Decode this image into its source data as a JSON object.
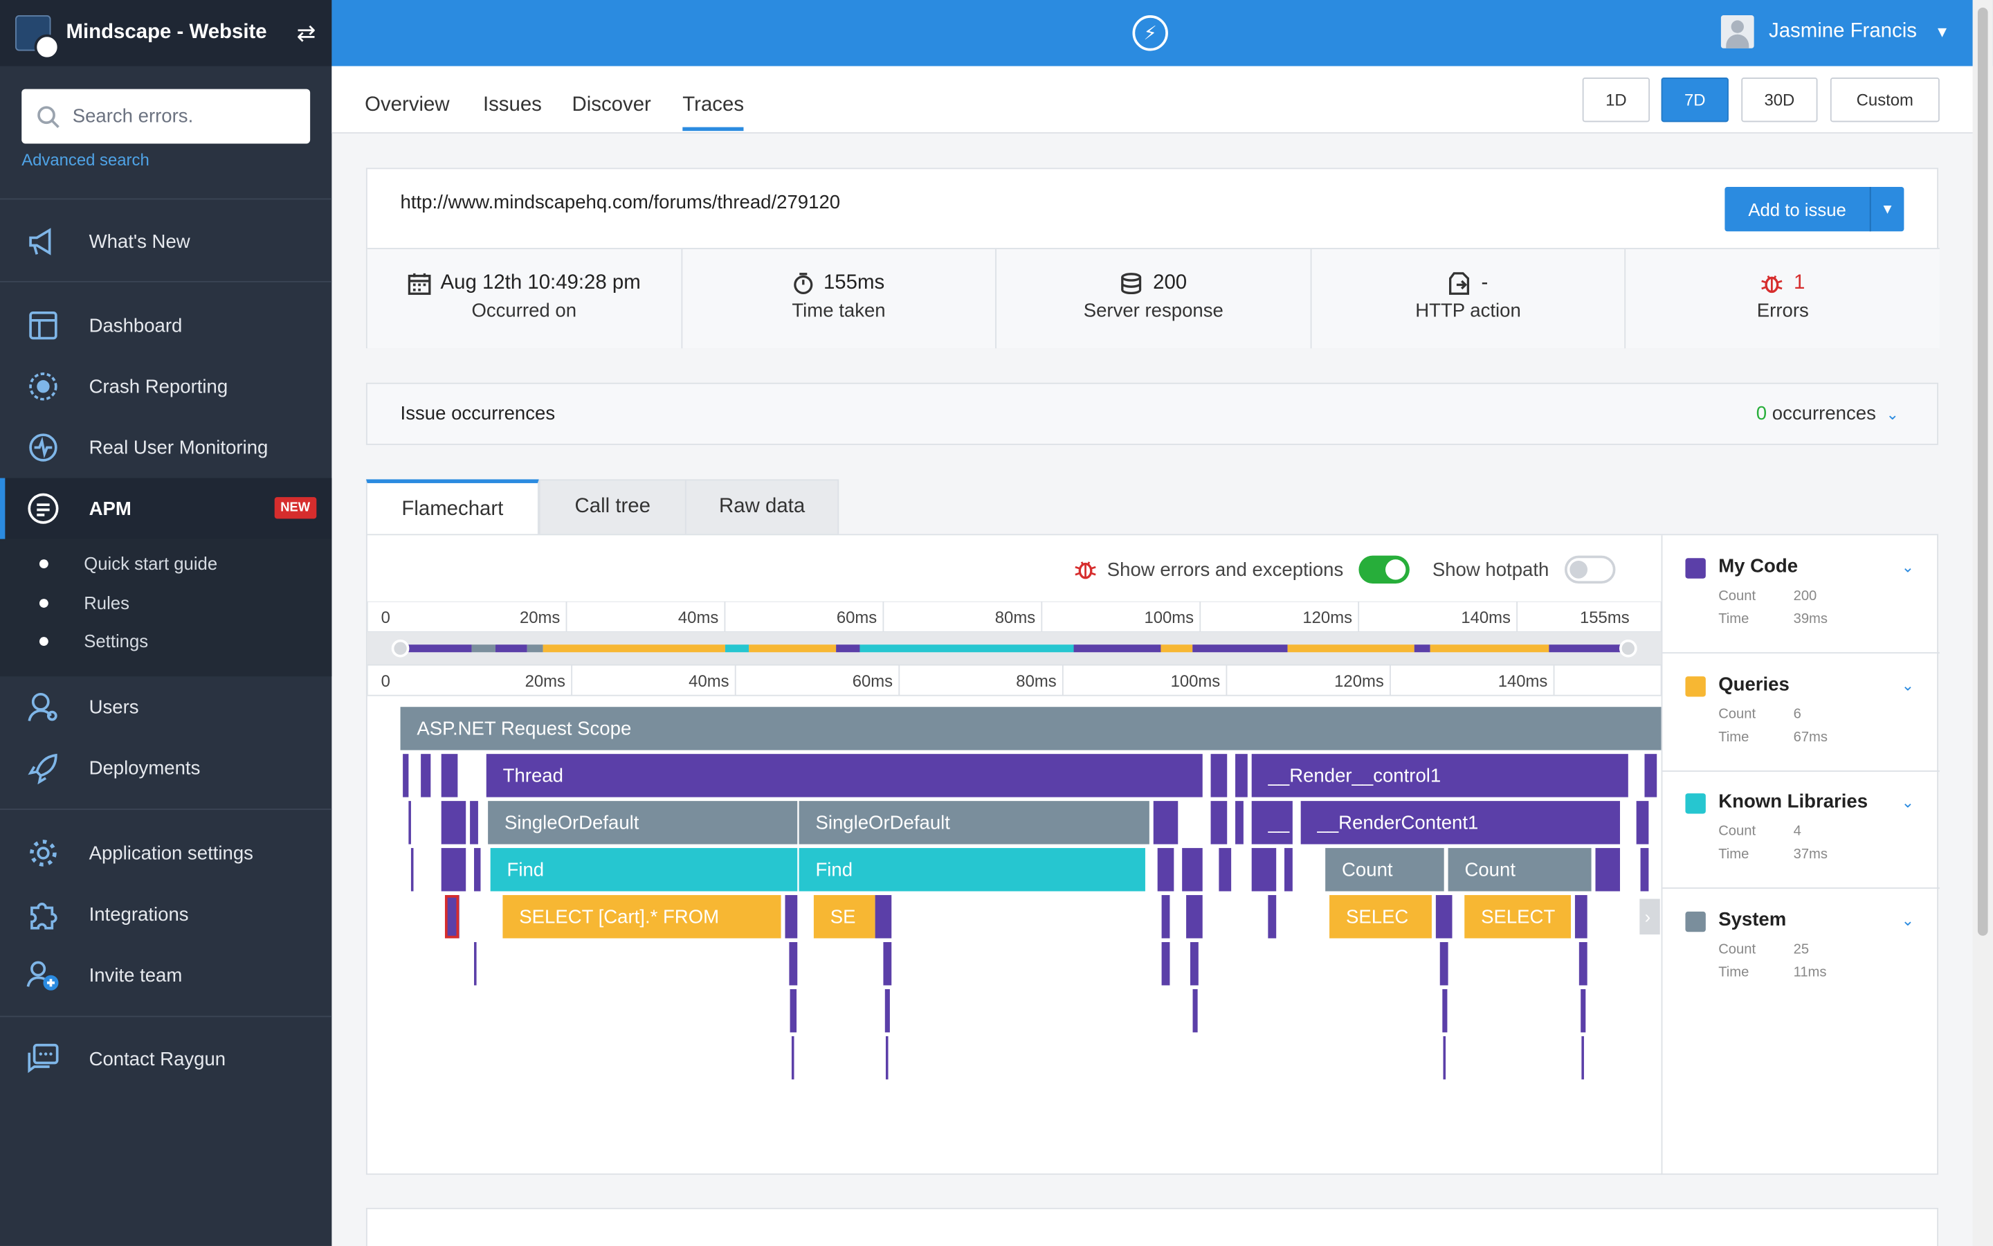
{
  "sidebar": {
    "app_name": "Mindscape - Website",
    "search_placeholder": "Search errors.",
    "advanced_search": "Advanced search",
    "items": [
      {
        "label": "What's New"
      },
      {
        "label": "Dashboard"
      },
      {
        "label": "Crash Reporting"
      },
      {
        "label": "Real User Monitoring"
      },
      {
        "label": "APM",
        "badge": "NEW"
      },
      {
        "label": "Users"
      },
      {
        "label": "Deployments"
      },
      {
        "label": "Application settings"
      },
      {
        "label": "Integrations"
      },
      {
        "label": "Invite team"
      },
      {
        "label": "Contact Raygun"
      }
    ],
    "apm_sub": [
      "Quick start guide",
      "Rules",
      "Settings"
    ]
  },
  "topbar": {
    "user_name": "Jasmine Francis"
  },
  "tabs": [
    "Overview",
    "Issues",
    "Discover",
    "Traces"
  ],
  "active_tab": "Traces",
  "ranges": [
    "1D",
    "7D",
    "30D",
    "Custom"
  ],
  "active_range": "7D",
  "trace": {
    "url": "http://www.mindscapehq.com/forums/thread/279120",
    "add_to_issue": "Add to issue",
    "stats": [
      {
        "icon": "calendar-icon",
        "value": "Aug 12th 10:49:28 pm",
        "label": "Occurred on"
      },
      {
        "icon": "stopwatch-icon",
        "value": "155ms",
        "label": "Time taken"
      },
      {
        "icon": "database-icon",
        "value": "200",
        "label": "Server response"
      },
      {
        "icon": "http-action-icon",
        "value": "-",
        "label": "HTTP action"
      },
      {
        "icon": "bug-icon",
        "value": "1",
        "label": "Errors"
      }
    ]
  },
  "occurrences": {
    "title": "Issue occurrences",
    "count": "0",
    "suffix": "occurrences"
  },
  "flame_tabs": [
    "Flamechart",
    "Call tree",
    "Raw data"
  ],
  "toggles": {
    "errors_label": "Show errors and exceptions",
    "errors_on": true,
    "hotpath_label": "Show hotpath",
    "hotpath_on": false
  },
  "legend": [
    {
      "name": "My Code",
      "color": "#5b3fa8",
      "count": "200",
      "time": "39ms"
    },
    {
      "name": "Queries",
      "color": "#f7b733",
      "count": "6",
      "time": "67ms"
    },
    {
      "name": "Known Libraries",
      "color": "#26c6d0",
      "count": "4",
      "time": "37ms"
    },
    {
      "name": "System",
      "color": "#7a8e9c",
      "count": "25",
      "time": "11ms"
    }
  ],
  "legend_labels": {
    "count": "Count",
    "time": "Time"
  },
  "chart_data": {
    "type": "flamechart",
    "axis_unit": "ms",
    "overview_ticks": [
      "0",
      "20ms",
      "40ms",
      "60ms",
      "80ms",
      "100ms",
      "120ms",
      "140ms",
      "155ms"
    ],
    "detail_ticks": [
      "0",
      "20ms",
      "40ms",
      "60ms",
      "80ms",
      "100ms",
      "120ms",
      "140ms"
    ],
    "total_ms": 155,
    "frames": [
      {
        "label": "ASP.NET Request Scope",
        "depth": 0,
        "start": 0,
        "end": 155,
        "cat": "System"
      },
      {
        "label": "Thread",
        "depth": 1,
        "start": 10.5,
        "end": 98,
        "cat": "My Code"
      },
      {
        "label": "__Render__control1",
        "depth": 1,
        "start": 104,
        "end": 150,
        "cat": "My Code"
      },
      {
        "label": "SingleOrDefault",
        "depth": 2,
        "start": 10.7,
        "end": 48.5,
        "cat": "System"
      },
      {
        "label": "SingleOrDefault",
        "depth": 2,
        "start": 48.7,
        "end": 91.5,
        "cat": "System"
      },
      {
        "label": "__",
        "depth": 2,
        "start": 104,
        "end": 109,
        "cat": "My Code"
      },
      {
        "label": "__RenderContent1",
        "depth": 2,
        "start": 110,
        "end": 149,
        "cat": "My Code"
      },
      {
        "label": "Find",
        "depth": 3,
        "start": 11,
        "end": 48.5,
        "cat": "Known Libraries"
      },
      {
        "label": "Find",
        "depth": 3,
        "start": 48.7,
        "end": 91,
        "cat": "Known Libraries"
      },
      {
        "label": "Count",
        "depth": 3,
        "start": 113,
        "end": 127.5,
        "cat": "System"
      },
      {
        "label": "Count",
        "depth": 3,
        "start": 128,
        "end": 145.5,
        "cat": "System"
      },
      {
        "label": "SELECT   [Cart].*  FROM",
        "depth": 4,
        "start": 12.5,
        "end": 46.5,
        "cat": "Queries"
      },
      {
        "label": "SE",
        "depth": 4,
        "start": 50.5,
        "end": 58,
        "cat": "Queries"
      },
      {
        "label": "SELEC",
        "depth": 4,
        "start": 113.5,
        "end": 126,
        "cat": "Queries"
      },
      {
        "label": "SELECT",
        "depth": 4,
        "start": 130,
        "end": 143,
        "cat": "Queries"
      }
    ]
  }
}
